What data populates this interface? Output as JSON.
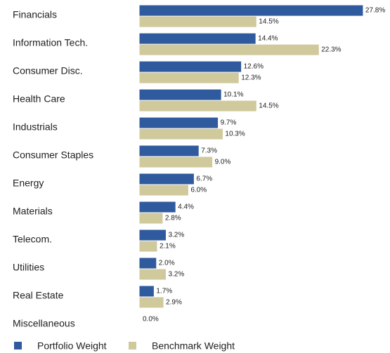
{
  "chart_data": {
    "type": "hbar",
    "categories": [
      "Financials",
      "Information Tech.",
      "Consumer Disc.",
      "Health Care",
      "Industrials",
      "Consumer Staples",
      "Energy",
      "Materials",
      "Telecom.",
      "Utilities",
      "Real Estate",
      "Miscellaneous"
    ],
    "series": [
      {
        "name": "Portfolio Weight",
        "color": "#2f5a9e",
        "values": [
          27.8,
          14.4,
          12.6,
          10.1,
          9.7,
          7.3,
          6.7,
          4.4,
          3.2,
          2.0,
          1.7,
          0.0
        ],
        "value_labels": [
          "27.8%",
          "14.4%",
          "12.6%",
          "10.1%",
          "9.7%",
          "7.3%",
          "6.7%",
          "4.4%",
          "3.2%",
          "2.0%",
          "1.7%",
          "0.0%"
        ]
      },
      {
        "name": "Benchmark Weight",
        "color": "#cfc99c",
        "values": [
          14.5,
          22.3,
          12.3,
          14.5,
          10.3,
          9.0,
          6.0,
          2.8,
          2.1,
          3.2,
          2.9,
          null
        ],
        "value_labels": [
          "14.5%",
          "22.3%",
          "12.3%",
          "14.5%",
          "10.3%",
          "9.0%",
          "6.0%",
          "2.8%",
          "2.1%",
          "3.2%",
          "2.9%",
          null
        ]
      }
    ],
    "legend": "bottom"
  }
}
